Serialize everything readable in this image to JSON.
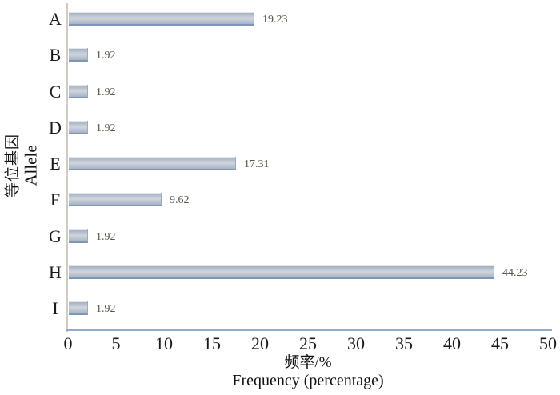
{
  "chart_data": {
    "type": "bar",
    "orientation": "horizontal",
    "title": "",
    "categories": [
      "A",
      "B",
      "C",
      "D",
      "E",
      "F",
      "G",
      "H",
      "I"
    ],
    "values": [
      19.23,
      1.92,
      1.92,
      1.92,
      17.31,
      9.62,
      1.92,
      44.23,
      1.92
    ],
    "value_labels": [
      "19.23",
      "1.92",
      "1.92",
      "1.92",
      "17.31",
      "9.62",
      "1.92",
      "44.23",
      "1.92"
    ],
    "xlabel_zh": "频率/%",
    "xlabel_en": "Frequency (percentage)",
    "ylabel_zh": "等位基因",
    "ylabel_en": "Allele",
    "xlim": [
      0,
      50
    ],
    "xticks": [
      0,
      5,
      10,
      15,
      20,
      25,
      30,
      35,
      40,
      45,
      50
    ],
    "grid": false,
    "legend": "none",
    "data_labels_position": "outside-end",
    "colors": {
      "bar_gradient_top": "#9dabbf",
      "bar_gradient_mid": "#cfd5dd",
      "bar_gradient_bottom": "#a9b3c4",
      "bar_bottom_edge": "#7c95ba",
      "bar_top_highlight": "#e4e8ee",
      "y_axis_line": "#d1cbc2",
      "x_axis_line": "#93a8c7",
      "value_label_text": "#5c5348",
      "axis_text": "#1a1a1a",
      "background": "#ffffff"
    }
  }
}
